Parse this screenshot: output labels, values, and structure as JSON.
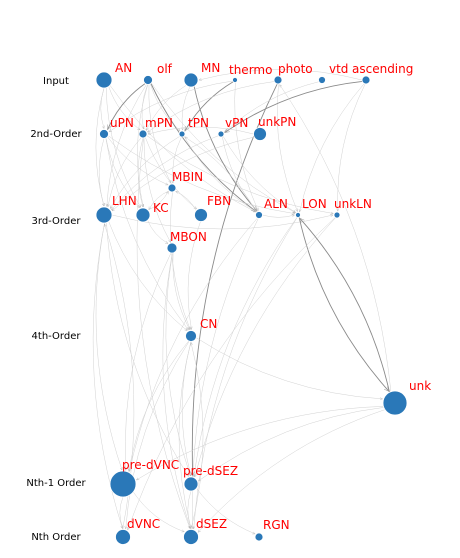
{
  "colors": {
    "node_fill": "#2a78b8",
    "node_stroke": "#ffffff",
    "label": "#ff0000",
    "edge_dark": "#8a8a8a",
    "edge_light": "#d2d2d2"
  },
  "rows": [
    {
      "id": "input",
      "label": "Input"
    },
    {
      "id": "second",
      "label": "2nd-Order"
    },
    {
      "id": "third",
      "label": "3rd-Order"
    },
    {
      "id": "fourth",
      "label": "4th-Order"
    },
    {
      "id": "nth1",
      "label": "Nth-1 Order"
    },
    {
      "id": "nth",
      "label": "Nth Order"
    }
  ],
  "nodes": [
    {
      "id": "AN",
      "label": "AN"
    },
    {
      "id": "olf",
      "label": "olf"
    },
    {
      "id": "MN",
      "label": "MN"
    },
    {
      "id": "thermo",
      "label": "thermo"
    },
    {
      "id": "photo",
      "label": "photo"
    },
    {
      "id": "vtd",
      "label": "vtd"
    },
    {
      "id": "ascending",
      "label": "ascending"
    },
    {
      "id": "uPN",
      "label": "uPN"
    },
    {
      "id": "mPN",
      "label": "mPN"
    },
    {
      "id": "tPN",
      "label": "tPN"
    },
    {
      "id": "vPN",
      "label": "vPN"
    },
    {
      "id": "unkPN",
      "label": "unkPN"
    },
    {
      "id": "MBIN",
      "label": "MBIN"
    },
    {
      "id": "LHN",
      "label": "LHN"
    },
    {
      "id": "KC",
      "label": "KC"
    },
    {
      "id": "FBN",
      "label": "FBN"
    },
    {
      "id": "ALN",
      "label": "ALN"
    },
    {
      "id": "LON",
      "label": "LON"
    },
    {
      "id": "unkLN",
      "label": "unkLN"
    },
    {
      "id": "MBON",
      "label": "MBON"
    },
    {
      "id": "CN",
      "label": "CN"
    },
    {
      "id": "unk",
      "label": "unk"
    },
    {
      "id": "pre-dVNC",
      "label": "pre-dVNC"
    },
    {
      "id": "pre-dSEZ",
      "label": "pre-dSEZ"
    },
    {
      "id": "dVNC",
      "label": "dVNC"
    },
    {
      "id": "dSEZ",
      "label": "dSEZ"
    },
    {
      "id": "RGN",
      "label": "RGN"
    }
  ],
  "edges": [
    [
      "AN",
      "uPN"
    ],
    [
      "AN",
      "mPN"
    ],
    [
      "AN",
      "LHN"
    ],
    [
      "AN",
      "KC"
    ],
    [
      "AN",
      "ALN"
    ],
    [
      "olf",
      "uPN"
    ],
    [
      "olf",
      "mPN"
    ],
    [
      "olf",
      "tPN"
    ],
    [
      "olf",
      "LHN"
    ],
    [
      "olf",
      "KC"
    ],
    [
      "olf",
      "MBIN"
    ],
    [
      "olf",
      "ALN"
    ],
    [
      "olf",
      "LON"
    ],
    [
      "MN",
      "tPN"
    ],
    [
      "MN",
      "ALN"
    ],
    [
      "MN",
      "mPN"
    ],
    [
      "thermo",
      "uPN"
    ],
    [
      "thermo",
      "tPN"
    ],
    [
      "thermo",
      "ALN"
    ],
    [
      "photo",
      "mPN"
    ],
    [
      "photo",
      "LON"
    ],
    [
      "photo",
      "pre-dSEZ"
    ],
    [
      "vtd",
      "vPN"
    ],
    [
      "ascending",
      "vPN"
    ],
    [
      "ascending",
      "LON"
    ],
    [
      "ascending",
      "unkLN"
    ],
    [
      "ascending",
      "MN"
    ],
    [
      "uPN",
      "LHN"
    ],
    [
      "uPN",
      "KC"
    ],
    [
      "uPN",
      "MBIN"
    ],
    [
      "uPN",
      "LON"
    ],
    [
      "uPN",
      "CN"
    ],
    [
      "mPN",
      "LHN"
    ],
    [
      "mPN",
      "KC"
    ],
    [
      "mPN",
      "MBON"
    ],
    [
      "mPN",
      "FBN"
    ],
    [
      "mPN",
      "unkLN"
    ],
    [
      "mPN",
      "dSEZ"
    ],
    [
      "tPN",
      "LHN"
    ],
    [
      "tPN",
      "ALN"
    ],
    [
      "tPN",
      "MBIN"
    ],
    [
      "vPN",
      "LHN"
    ],
    [
      "vPN",
      "ALN"
    ],
    [
      "vPN",
      "LON"
    ],
    [
      "unkPN",
      "LHN"
    ],
    [
      "unkPN",
      "mPN"
    ],
    [
      "LHN",
      "CN"
    ],
    [
      "LHN",
      "pre-dVNC"
    ],
    [
      "LHN",
      "pre-dSEZ"
    ],
    [
      "LHN",
      "unkLN"
    ],
    [
      "LHN",
      "dVNC"
    ],
    [
      "KC",
      "MBON"
    ],
    [
      "KC",
      "MBIN"
    ],
    [
      "MBIN",
      "KC"
    ],
    [
      "MBIN",
      "CN"
    ],
    [
      "FBN",
      "CN"
    ],
    [
      "FBN",
      "MBIN"
    ],
    [
      "MBON",
      "CN"
    ],
    [
      "MBON",
      "dSEZ"
    ],
    [
      "MBON",
      "pre-dSEZ"
    ],
    [
      "MBON",
      "pre-dVNC"
    ],
    [
      "ALN",
      "LON"
    ],
    [
      "ALN",
      "pre-dVNC"
    ],
    [
      "ALN",
      "dSEZ"
    ],
    [
      "ALN",
      "tPN"
    ],
    [
      "LON",
      "unk"
    ],
    [
      "LON",
      "pre-dSEZ"
    ],
    [
      "LON",
      "dSEZ"
    ],
    [
      "unkLN",
      "pre-dSEZ"
    ],
    [
      "unkLN",
      "dVNC"
    ],
    [
      "CN",
      "pre-dVNC"
    ],
    [
      "CN",
      "pre-dSEZ"
    ],
    [
      "CN",
      "unk"
    ],
    [
      "CN",
      "dSEZ"
    ],
    [
      "CN",
      "dVNC"
    ],
    [
      "unk",
      "pre-dVNC"
    ],
    [
      "unk",
      "pre-dSEZ"
    ],
    [
      "unk",
      "LON"
    ],
    [
      "unk",
      "dSEZ"
    ],
    [
      "pre-dVNC",
      "dVNC"
    ],
    [
      "pre-dSEZ",
      "dSEZ"
    ],
    [
      "pre-dSEZ",
      "RGN"
    ],
    [
      "pre-dVNC",
      "dSEZ"
    ],
    [
      "dSEZ",
      "CN"
    ],
    [
      "dVNC",
      "LHN"
    ],
    [
      "unk",
      "photo"
    ]
  ],
  "dark_edges": [
    [
      "olf",
      "uPN"
    ],
    [
      "thermo",
      "tPN"
    ],
    [
      "olf",
      "ALN"
    ],
    [
      "MN",
      "ALN"
    ],
    [
      "photo",
      "pre-dSEZ"
    ],
    [
      "unk",
      "LON"
    ],
    [
      "LON",
      "unk"
    ],
    [
      "ascending",
      "vPN"
    ]
  ]
}
